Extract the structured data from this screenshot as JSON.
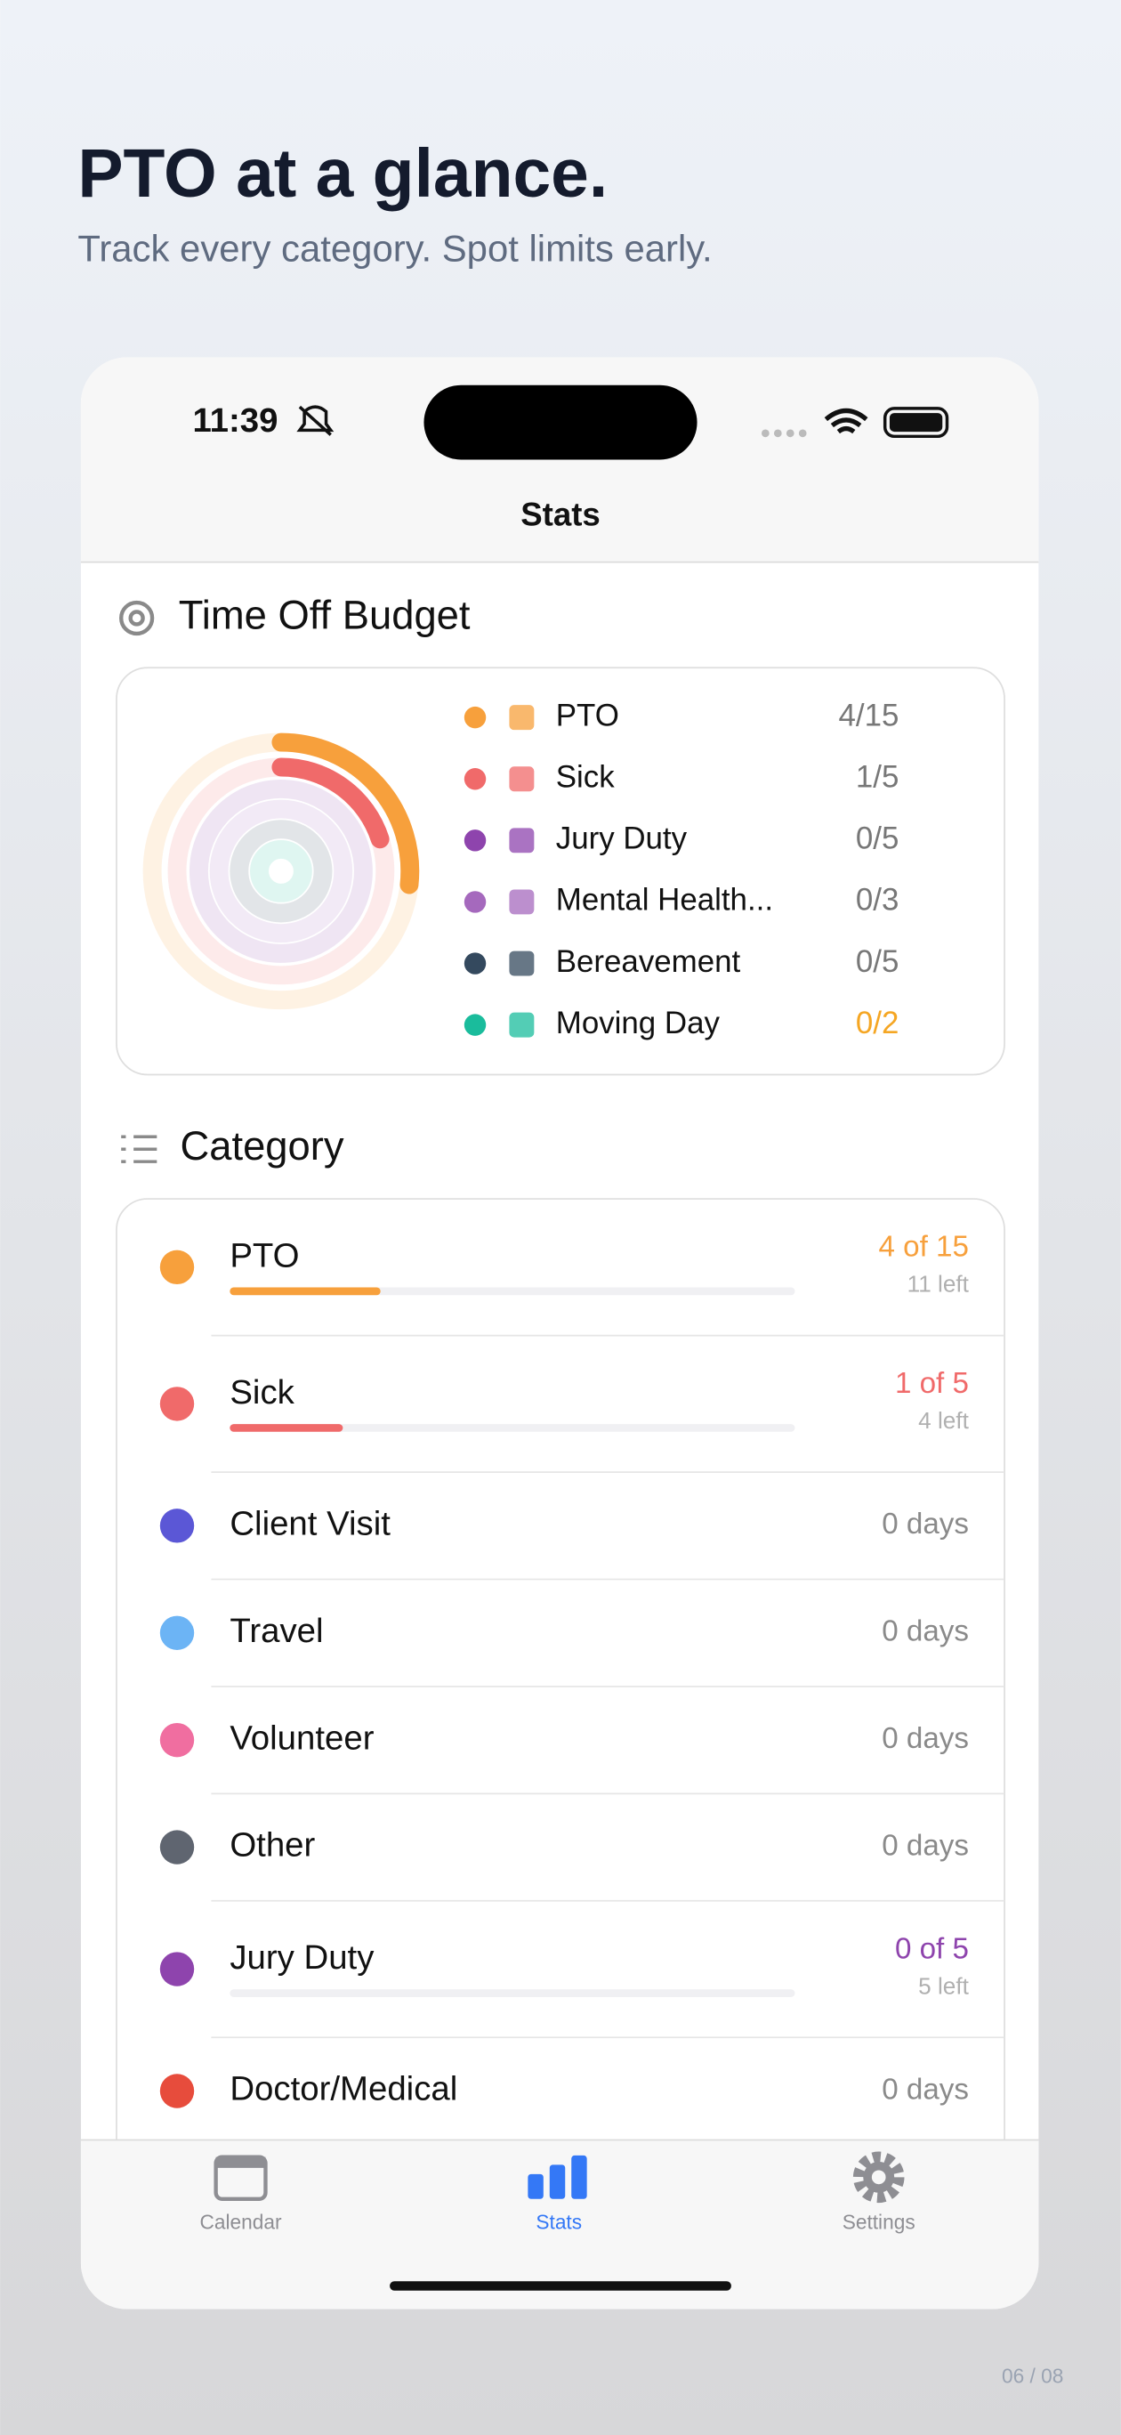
{
  "header": {
    "title": "PTO at a glance.",
    "subtitle": "Track every category. Spot limits early."
  },
  "status_bar": {
    "time": "11:39"
  },
  "nav_title": "Stats",
  "budget": {
    "title": "Time Off Budget",
    "items": [
      {
        "label": "PTO",
        "value_label": "4/15",
        "used": 4,
        "total": 15,
        "color": "#f7a03c"
      },
      {
        "label": "Sick",
        "value_label": "1/5",
        "used": 1,
        "total": 5,
        "color": "#f06a6a"
      },
      {
        "label": "Jury Duty",
        "value_label": "0/5",
        "used": 0,
        "total": 5,
        "color": "#8e44ad"
      },
      {
        "label": "Mental Health...",
        "value_label": "0/3",
        "used": 0,
        "total": 3,
        "color": "#a569bd"
      },
      {
        "label": "Bereavement",
        "value_label": "0/5",
        "used": 0,
        "total": 5,
        "color": "#34495e"
      },
      {
        "label": "Moving Day",
        "value_label": "0/2",
        "used": 0,
        "total": 2,
        "color": "#1abc9c",
        "value_color": "#f5a623"
      }
    ]
  },
  "categories": {
    "title": "Category",
    "items": [
      {
        "label": "PTO",
        "value_label": "4 of 15",
        "remaining": "11 left",
        "used": 4,
        "total": 15,
        "color": "#f7a03c",
        "icon_color": "#f7a03c"
      },
      {
        "label": "Sick",
        "value_label": "1 of 5",
        "remaining": "4 left",
        "used": 1,
        "total": 5,
        "color": "#f06a6a",
        "icon_color": "#f06a6a"
      },
      {
        "label": "Client Visit",
        "value_label": "0 days",
        "icon_color": "#5b57d6"
      },
      {
        "label": "Travel",
        "value_label": "0 days",
        "icon_color": "#6cb4f5"
      },
      {
        "label": "Volunteer",
        "value_label": "0 days",
        "icon_color": "#f06ea0"
      },
      {
        "label": "Other",
        "value_label": "0 days",
        "icon_color": "#5f6570"
      },
      {
        "label": "Jury Duty",
        "value_label": "0 of 5",
        "remaining": "5 left",
        "used": 0,
        "total": 5,
        "color": "#8e44ad",
        "icon_color": "#8e44ad"
      },
      {
        "label": "Doctor/Medical",
        "value_label": "0 days",
        "icon_color": "#e74c3c"
      }
    ]
  },
  "tabs": [
    {
      "label": "Calendar"
    },
    {
      "label": "Stats",
      "active": true
    },
    {
      "label": "Settings"
    }
  ],
  "page_indicator": "06 / 08"
}
